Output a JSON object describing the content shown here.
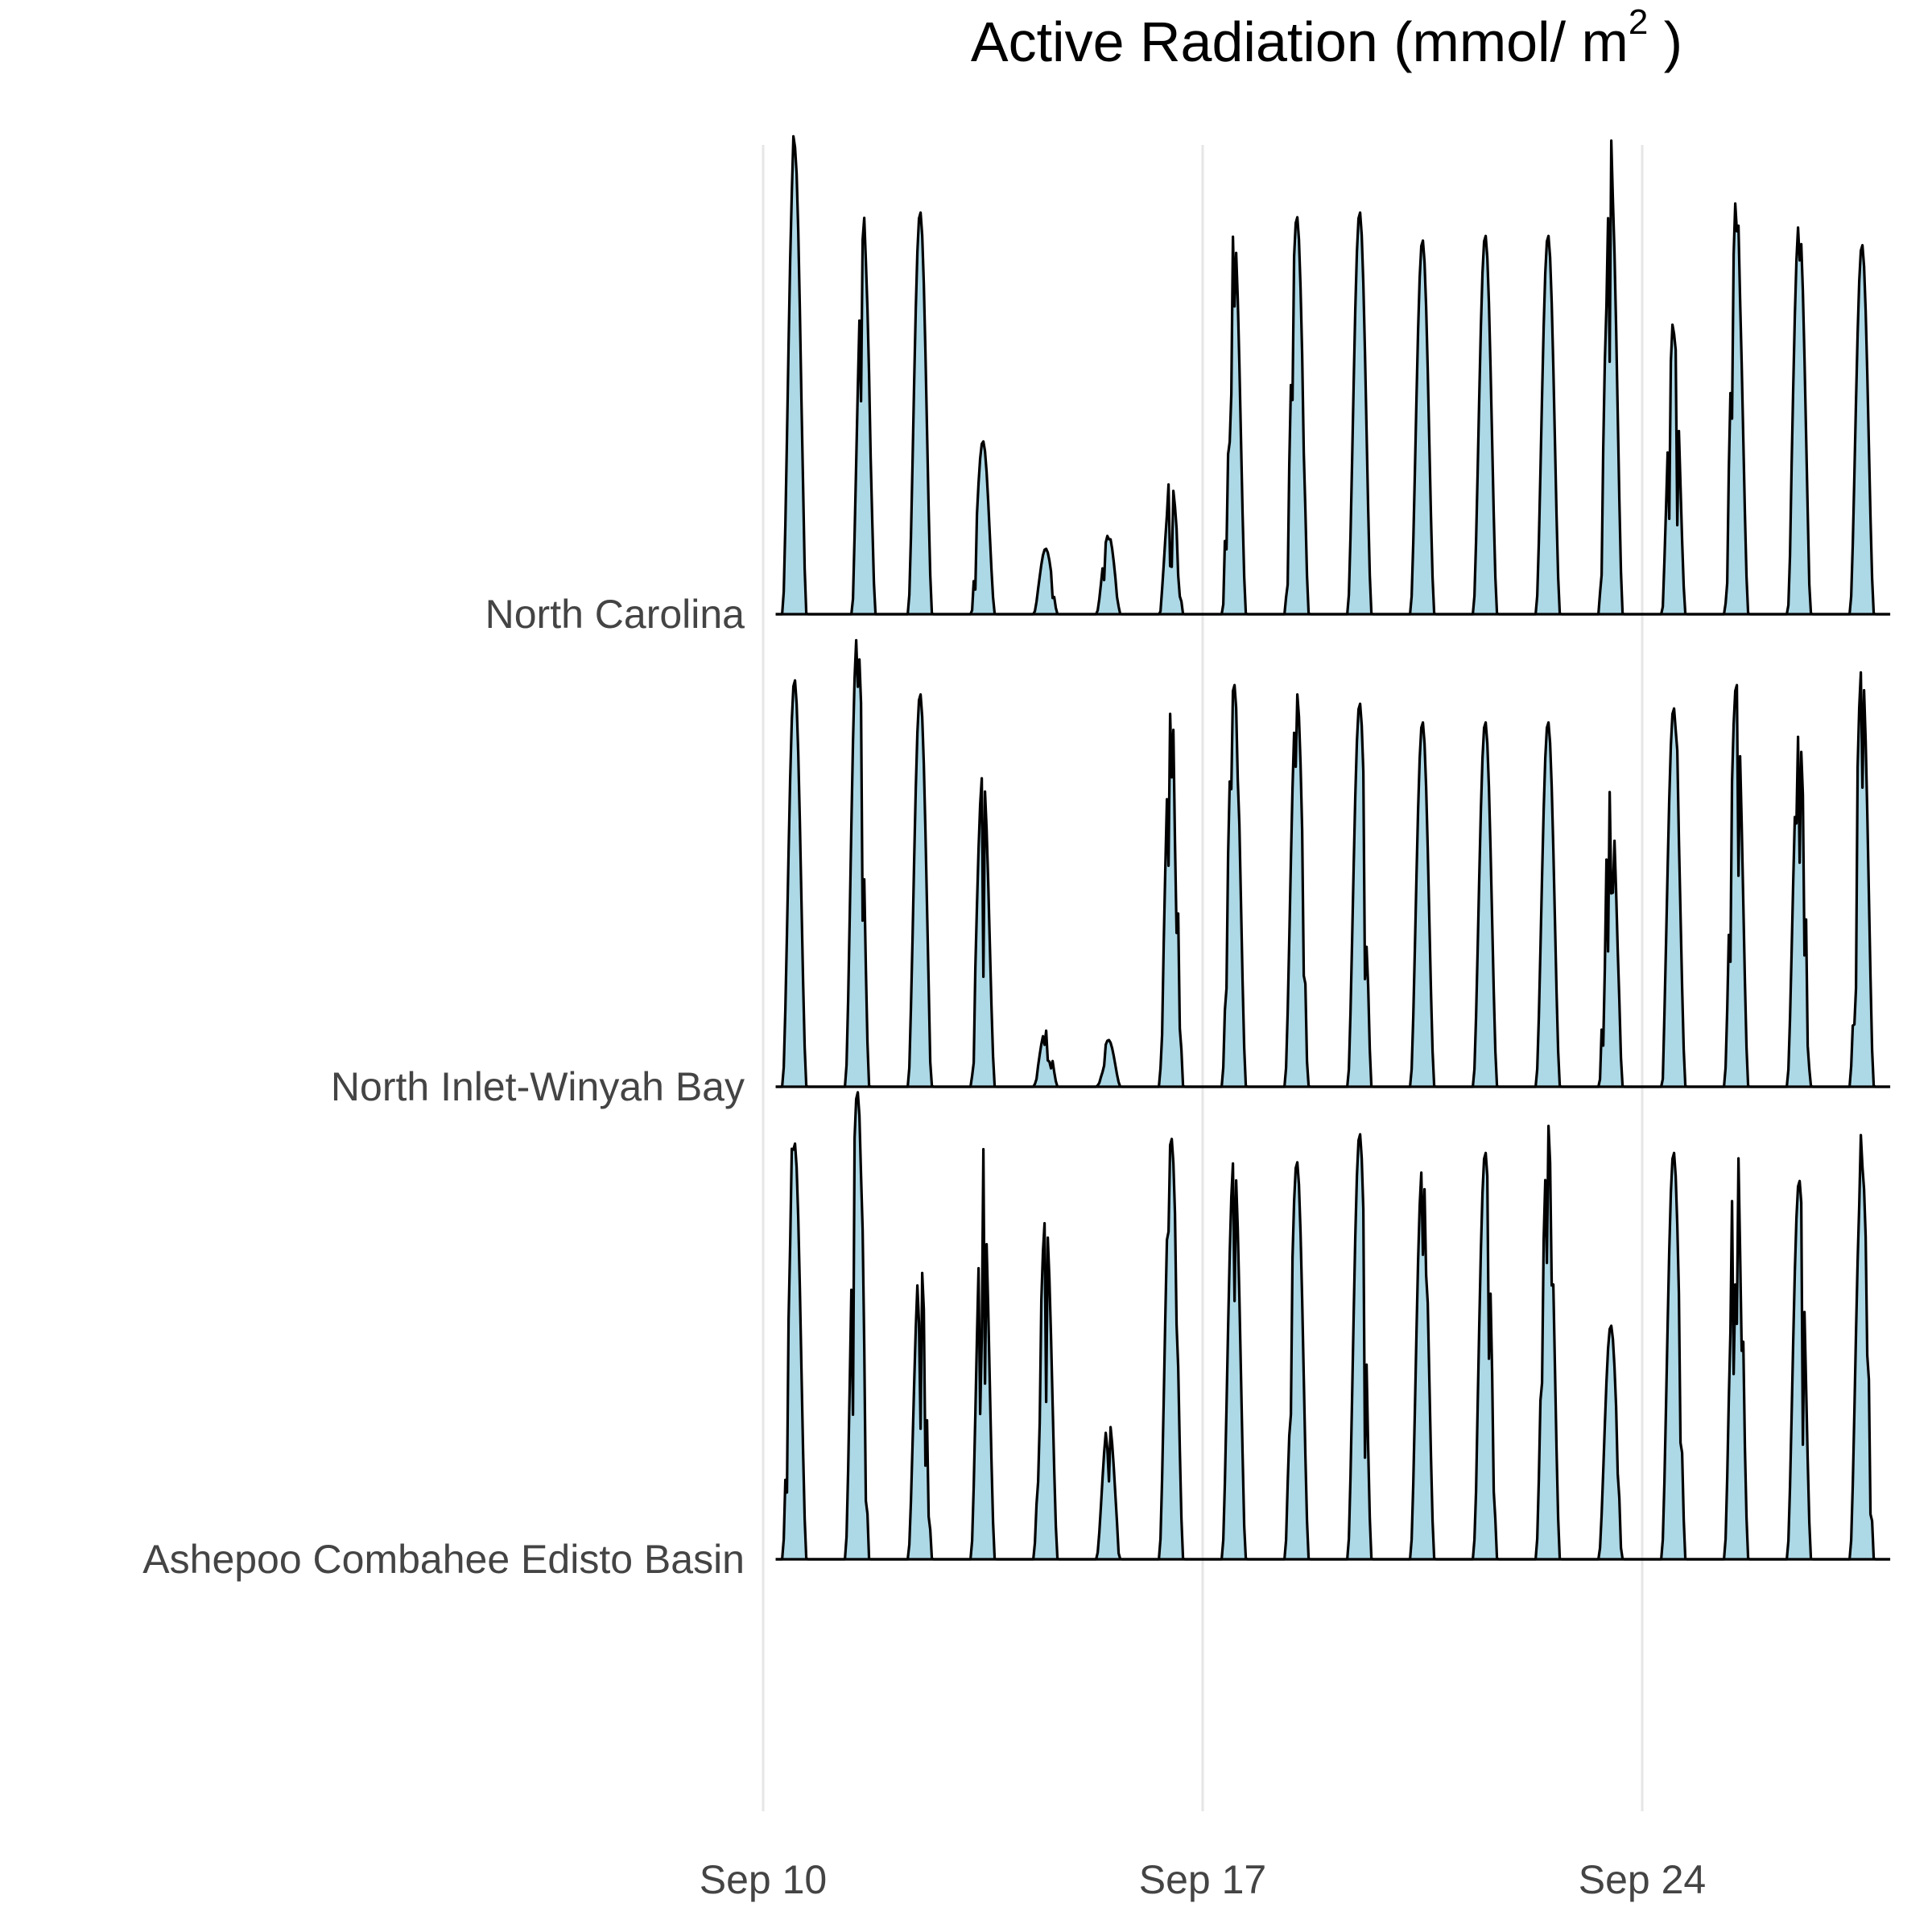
{
  "chart_data": {
    "type": "area",
    "title_main": "Active Radiation (mmol/ m",
    "title_sup": "2",
    "title_close": " )",
    "xlabel": "",
    "ylabel": "",
    "x_ticks": [
      "Sep 10",
      "Sep 17",
      "Sep 24"
    ],
    "x_range_days": [
      10.0,
      28.0
    ],
    "y_range_per_site": [
      0,
      1
    ],
    "grid": "vertical major gridlines",
    "colors": {
      "fill": "#add8e6",
      "line": "#000000",
      "grid": "#e6e6e6"
    },
    "series": [
      {
        "name": "North Carolina",
        "peaks": [
          {
            "day": 10.5,
            "value": 1.0,
            "noise": 0.15
          },
          {
            "day": 11.6,
            "value": 0.81,
            "noise": 0.35
          },
          {
            "day": 12.5,
            "value": 0.86,
            "noise": 0.1
          },
          {
            "day": 13.5,
            "value": 0.37,
            "noise": 0.4
          },
          {
            "day": 14.5,
            "value": 0.14,
            "noise": 0.25
          },
          {
            "day": 15.5,
            "value": 0.17,
            "noise": 0.4
          },
          {
            "day": 16.5,
            "value": 0.28,
            "noise": 0.4
          },
          {
            "day": 17.5,
            "value": 0.82,
            "noise": 0.5
          },
          {
            "day": 18.5,
            "value": 0.85,
            "noise": 0.25
          },
          {
            "day": 19.5,
            "value": 0.86,
            "noise": 0.2
          },
          {
            "day": 20.5,
            "value": 0.8,
            "noise": 0.0
          },
          {
            "day": 21.5,
            "value": 0.81,
            "noise": 0.05
          },
          {
            "day": 22.5,
            "value": 0.81,
            "noise": 0.0
          },
          {
            "day": 23.5,
            "value": 0.94,
            "noise": 0.35
          },
          {
            "day": 24.5,
            "value": 0.6,
            "noise": 0.45
          },
          {
            "day": 25.5,
            "value": 0.82,
            "noise": 0.45
          },
          {
            "day": 26.5,
            "value": 0.84,
            "noise": 0.4
          },
          {
            "day": 27.5,
            "value": 0.79,
            "noise": 0.0
          }
        ]
      },
      {
        "name": "North Inlet-Winyah Bay",
        "peaks": [
          {
            "day": 10.5,
            "value": 0.87,
            "noise": 0.1
          },
          {
            "day": 11.5,
            "value": 0.97,
            "noise": 0.45
          },
          {
            "day": 12.5,
            "value": 0.84,
            "noise": 0.1
          },
          {
            "day": 13.5,
            "value": 0.67,
            "noise": 0.35
          },
          {
            "day": 14.5,
            "value": 0.12,
            "noise": 0.4
          },
          {
            "day": 15.5,
            "value": 0.1,
            "noise": 0.3
          },
          {
            "day": 16.5,
            "value": 0.81,
            "noise": 0.55
          },
          {
            "day": 17.5,
            "value": 0.86,
            "noise": 0.35
          },
          {
            "day": 18.5,
            "value": 0.84,
            "noise": 0.35
          },
          {
            "day": 19.5,
            "value": 0.82,
            "noise": 0.25
          },
          {
            "day": 20.5,
            "value": 0.78,
            "noise": 0.0
          },
          {
            "day": 21.5,
            "value": 0.78,
            "noise": 0.0
          },
          {
            "day": 22.5,
            "value": 0.78,
            "noise": 0.0
          },
          {
            "day": 23.5,
            "value": 0.64,
            "noise": 0.5
          },
          {
            "day": 24.5,
            "value": 0.81,
            "noise": 0.3
          },
          {
            "day": 25.5,
            "value": 0.86,
            "noise": 0.45
          },
          {
            "day": 26.5,
            "value": 0.76,
            "noise": 0.4
          },
          {
            "day": 27.5,
            "value": 0.9,
            "noise": 0.5
          }
        ]
      },
      {
        "name": "Ashepoo Combahee Edisto Basin",
        "peaks": [
          {
            "day": 10.5,
            "value": 0.89,
            "noise": 0.35
          },
          {
            "day": 11.5,
            "value": 1.0,
            "noise": 0.45
          },
          {
            "day": 12.5,
            "value": 0.65,
            "noise": 0.5
          },
          {
            "day": 13.5,
            "value": 0.82,
            "noise": 0.45
          },
          {
            "day": 14.5,
            "value": 0.73,
            "noise": 0.45
          },
          {
            "day": 15.5,
            "value": 0.3,
            "noise": 0.4
          },
          {
            "day": 16.5,
            "value": 0.9,
            "noise": 0.4
          },
          {
            "day": 17.5,
            "value": 0.86,
            "noise": 0.35
          },
          {
            "day": 18.5,
            "value": 0.85,
            "noise": 0.1
          },
          {
            "day": 19.5,
            "value": 0.91,
            "noise": 0.3
          },
          {
            "day": 20.5,
            "value": 0.84,
            "noise": 0.3
          },
          {
            "day": 21.5,
            "value": 0.87,
            "noise": 0.3
          },
          {
            "day": 22.5,
            "value": 0.9,
            "noise": 0.25
          },
          {
            "day": 23.5,
            "value": 0.5,
            "noise": 0.3
          },
          {
            "day": 24.5,
            "value": 0.87,
            "noise": 0.35
          },
          {
            "day": 25.5,
            "value": 0.91,
            "noise": 0.4
          },
          {
            "day": 26.5,
            "value": 0.81,
            "noise": 0.1
          },
          {
            "day": 27.5,
            "value": 0.84,
            "noise": 0.45
          }
        ]
      }
    ]
  }
}
